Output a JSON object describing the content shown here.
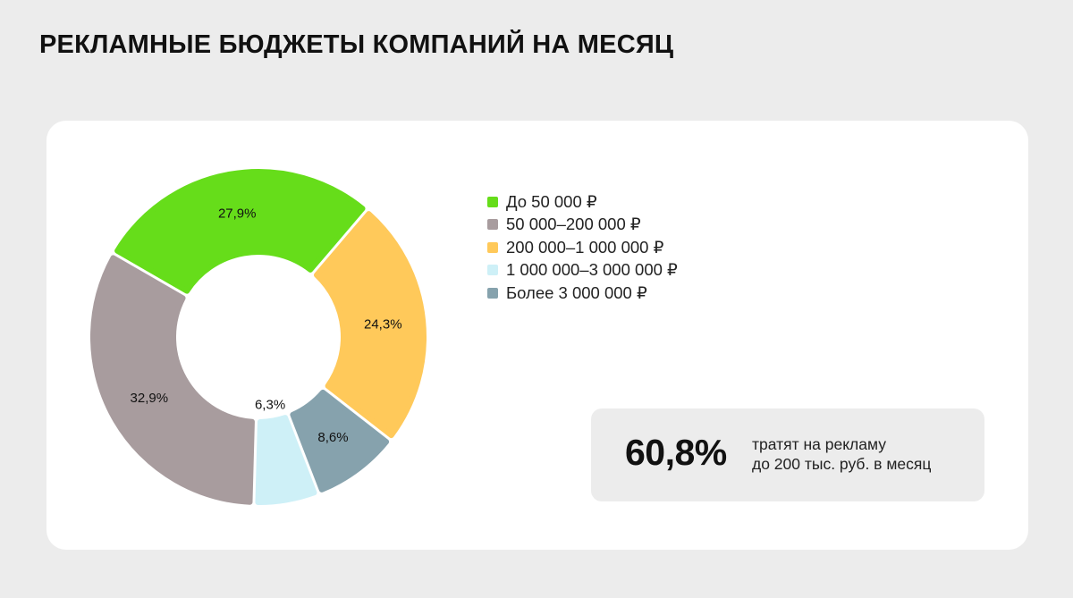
{
  "title": "РЕКЛАМНЫЕ БЮДЖЕТЫ КОМПАНИЙ НА МЕСЯЦ",
  "chart_data": {
    "type": "pie",
    "categories": [
      "До 50 000 ₽",
      "50 000–200 000 ₽",
      "200 000–1 000 000 ₽",
      "1 000 000–3 000 000 ₽",
      "Более 3 000 000 ₽"
    ],
    "values": [
      27.9,
      32.9,
      24.3,
      6.3,
      8.6
    ],
    "value_labels": [
      "27,9%",
      "32,9%",
      "24,3%",
      "6,3%",
      "8,6%"
    ],
    "colors": [
      "#66dd1a",
      "#a89c9e",
      "#ffc95a",
      "#cef0f7",
      "#86a2ad"
    ],
    "style": "donut",
    "legend_position": "right"
  },
  "stat": {
    "value": "60,8%",
    "line1": "тратят на рекламу",
    "line2": "до 200 тыс. руб. в месяц"
  }
}
